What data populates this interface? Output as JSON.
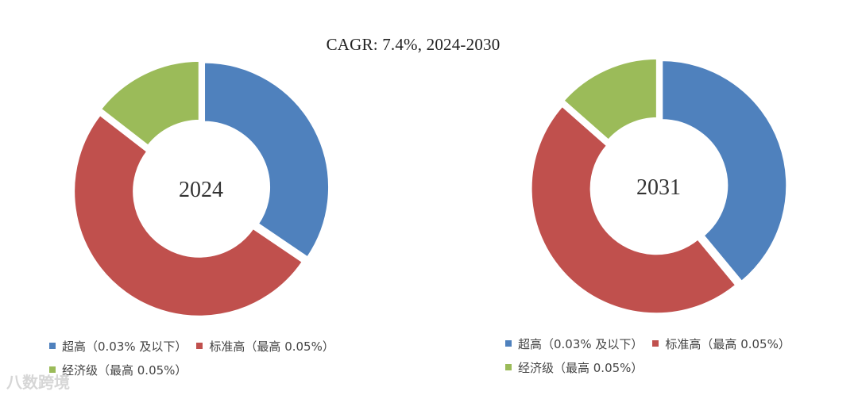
{
  "title": "CAGR:  7.4%, 2024-2030",
  "watermark": "八数跨境",
  "colors": {
    "ultra": "#4f81bd",
    "standard": "#c0504d",
    "economy": "#9bbb59"
  },
  "chart_data": [
    {
      "type": "pie",
      "center_label": "2024",
      "series": [
        {
          "name": "超高（0.03% 及以下）",
          "value": 34.5
        },
        {
          "name": "标准高（最高 0.05%）",
          "value": 51.0
        },
        {
          "name": "经济级（最高 0.05%）",
          "value": 14.5
        }
      ]
    },
    {
      "type": "pie",
      "center_label": "2031",
      "series": [
        {
          "name": "超高（0.03% 及以下）",
          "value": 39.0
        },
        {
          "name": "标准高（最高 0.05%）",
          "value": 47.5
        },
        {
          "name": "经济级（最高 0.05%）",
          "value": 13.5
        }
      ]
    }
  ]
}
